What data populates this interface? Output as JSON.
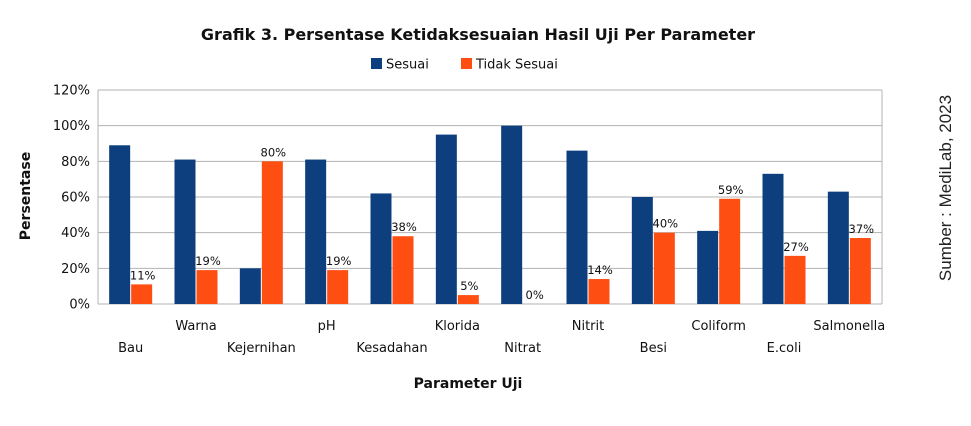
{
  "chart_data": {
    "type": "bar",
    "title": "Grafik 3. Persentase Ketidaksesuaian Hasil Uji Per Parameter",
    "xlabel": "Parameter Uji",
    "ylabel": "Persentase",
    "ylim": [
      0,
      120
    ],
    "yticks": [
      "0%",
      "20%",
      "40%",
      "60%",
      "80%",
      "100%",
      "120%"
    ],
    "grid": true,
    "legend_position": "top",
    "categories": [
      "Bau",
      "Warna",
      "Kejernihan",
      "pH",
      "Kesadahan",
      "Klorida",
      "Nitrat",
      "Nitrit",
      "Besi",
      "Coliform",
      "E.coli",
      "Salmonella"
    ],
    "series": [
      {
        "name": "Sesuai",
        "color": "#0d3f7f",
        "values": [
          89,
          81,
          20,
          81,
          62,
          95,
          100,
          86,
          60,
          41,
          73,
          63
        ]
      },
      {
        "name": "Tidak Sesuai",
        "color": "#ff4e12",
        "values": [
          11,
          19,
          80,
          19,
          38,
          5,
          0,
          14,
          40,
          59,
          27,
          37
        ]
      }
    ],
    "data_labels": {
      "series": "Tidak Sesuai",
      "labels": [
        "11%",
        "19%",
        "80%",
        "19%",
        "38%",
        "5%",
        "0%",
        "14%",
        "40%",
        "59%",
        "27%",
        "37%"
      ]
    }
  },
  "source_note": "Sumber : MediLab, 2023"
}
